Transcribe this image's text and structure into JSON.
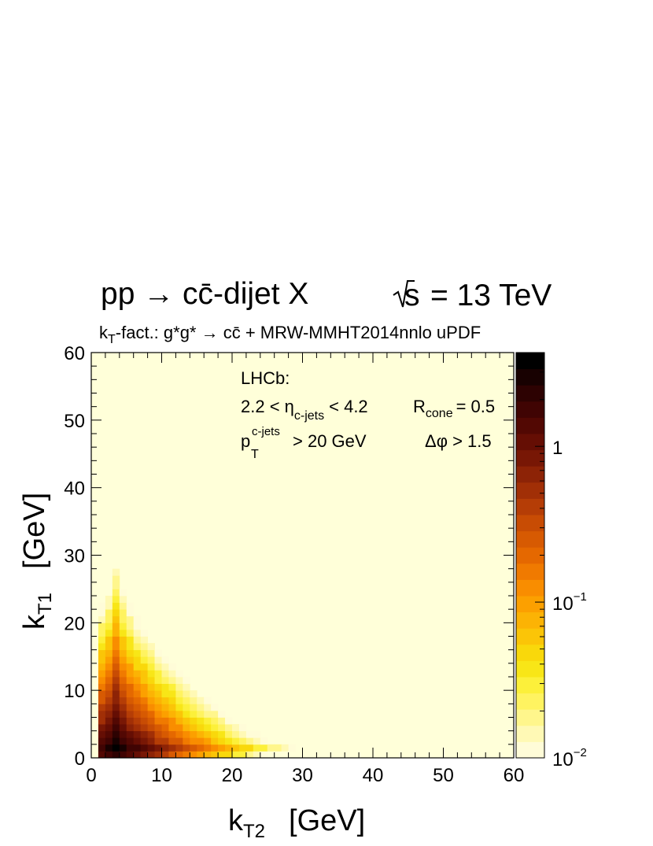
{
  "chart_data": {
    "type": "heatmap",
    "title_parts": {
      "process": "pp → cc̄-dijet X",
      "sqrt": "s",
      "energy": "= 13 TeV"
    },
    "subtitle_parts": {
      "k": "k",
      "k_sub": "T",
      "rest": "-fact.: g*g* → cc̄ + MRW-MMHT2014nnlo uPDF"
    },
    "annotation": {
      "experiment": "LHCb:",
      "eta_pre": "2.2 < η",
      "eta_sub": "c-jets",
      "eta_post": "< 4.2",
      "r_pre": "R",
      "r_sub": "cone",
      "r_post": "= 0.5",
      "pt_pre": "p",
      "pt_sub": "T",
      "pt_sup": "c-jets",
      "pt_post": "> 20 GeV",
      "dphi": "Δφ > 1.5"
    },
    "xaxis": {
      "main": "k",
      "sub": "T2",
      "unit": "[GeV]",
      "range": [
        0,
        60
      ],
      "ticks": [
        "0",
        "10",
        "20",
        "30",
        "40",
        "50",
        "60"
      ]
    },
    "yaxis": {
      "main": "k",
      "sub": "T1",
      "unit": "[GeV]",
      "range": [
        0,
        60
      ],
      "ticks": [
        "0",
        "10",
        "20",
        "30",
        "40",
        "50",
        "60"
      ]
    },
    "zaxis": {
      "scale": "log",
      "range": [
        0.01,
        4.0
      ],
      "tick_values": [
        1,
        0.1,
        0.01
      ],
      "ticks": [
        {
          "base": "1",
          "exp": ""
        },
        {
          "base": "10",
          "exp": "−1"
        },
        {
          "base": "10",
          "exp": "−2"
        }
      ]
    },
    "bins": {
      "nx": 60,
      "ny": 60
    },
    "model": {
      "note": "distribution peaks near kT1≈1.5, kT2≈5 GeV and falls off roughly exponentially",
      "peak": [
        5,
        1.5
      ],
      "peak_value": 3.2
    },
    "palette": [
      "#fffcd8",
      "#fff9b5",
      "#fff68c",
      "#fff360",
      "#fcf03a",
      "#f8e617",
      "#f9d80b",
      "#fbc507",
      "#fcb304",
      "#fca000",
      "#f98d00",
      "#f07a00",
      "#e56800",
      "#d75a02",
      "#c84c04",
      "#b53d06",
      "#a12f06",
      "#8d2306",
      "#781705",
      "#650e04",
      "#520803",
      "#400403",
      "#2d0202",
      "#180101",
      "#000000"
    ],
    "background_color": "#ffffd9"
  }
}
